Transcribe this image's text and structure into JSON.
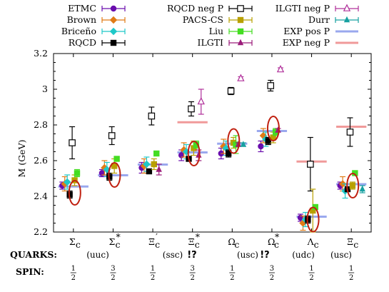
{
  "chart_data": {
    "type": "scatter",
    "ylabel": "M (GeV)",
    "ylim": [
      2.2,
      3.2
    ],
    "yticks": [
      "2.2",
      "2.4",
      "2.6",
      "2.8",
      "3",
      "3.2"
    ],
    "categories": [
      "Σc",
      "Σc*",
      "Ξc′",
      "Ξc*",
      "Ωc",
      "Ωc*",
      "Λc",
      "Ξc"
    ],
    "category_labels": [
      {
        "base": "Σ",
        "sub": "c",
        "sup": ""
      },
      {
        "base": "Σ",
        "sub": "c",
        "sup": "*"
      },
      {
        "base": "Ξ",
        "sub": "c",
        "sup": "′"
      },
      {
        "base": "Ξ",
        "sub": "c",
        "sup": "*"
      },
      {
        "base": "Ω",
        "sub": "c",
        "sup": ""
      },
      {
        "base": "Ω",
        "sub": "c",
        "sup": "*"
      },
      {
        "base": "Λ",
        "sub": "c",
        "sup": ""
      },
      {
        "base": "Ξ",
        "sub": "c",
        "sup": ""
      }
    ],
    "series": [
      {
        "name": "ETMC",
        "color": "#6a0dad",
        "marker": "circle",
        "values": [
          2.46,
          2.53,
          2.56,
          2.63,
          2.64,
          2.68,
          2.28,
          2.46
        ],
        "errors": [
          0.02,
          0.02,
          0.03,
          0.03,
          0.03,
          0.03,
          0.02,
          0.02
        ]
      },
      {
        "name": "Brown",
        "color": "#e07b16",
        "marker": "diamond",
        "values": [
          2.47,
          2.56,
          2.57,
          2.66,
          2.68,
          2.74,
          2.25,
          2.47
        ],
        "errors": [
          0.04,
          0.04,
          0.04,
          0.04,
          0.04,
          0.04,
          0.04,
          0.04
        ]
      },
      {
        "name": "Briceño",
        "color": "#1ec8c8",
        "marker": "diamond",
        "values": [
          2.48,
          2.55,
          2.58,
          2.65,
          2.67,
          2.72,
          2.27,
          2.43
        ],
        "errors": [
          0.04,
          0.04,
          0.04,
          0.04,
          0.04,
          0.04,
          0.04,
          0.04
        ]
      },
      {
        "name": "RQCD",
        "color": "#000000",
        "marker": "square",
        "values": [
          2.41,
          2.51,
          2.54,
          2.61,
          2.64,
          2.71,
          2.27,
          2.44
        ],
        "errors": [
          0.02,
          0.02,
          0.01,
          0.01,
          0.02,
          0.02,
          0.02,
          0.01
        ]
      },
      {
        "name": "RQCD neg P",
        "color": "#000000",
        "marker": "open-square",
        "values": [
          2.7,
          2.74,
          2.85,
          2.89,
          2.99,
          3.02,
          2.58,
          2.76
        ],
        "errors": [
          0.09,
          0.05,
          0.05,
          0.04,
          0.02,
          0.03,
          0.15,
          0.08
        ]
      },
      {
        "name": "PACS-CS",
        "color": "#b8a000",
        "marker": "square",
        "values": [
          2.49,
          2.57,
          2.58,
          2.67,
          2.7,
          2.73,
          2.32,
          2.46
        ],
        "errors": [
          0.03,
          0.04,
          0.03,
          0.04,
          0.03,
          0.03,
          0.12,
          0.02
        ]
      },
      {
        "name": "Liu",
        "color": "#44dd22",
        "marker": "square",
        "values": [
          2.53,
          2.61,
          2.64,
          2.69,
          2.69,
          2.76,
          2.34,
          2.53
        ],
        "errors": [
          0.02,
          0.01,
          0.01,
          0.02,
          0.05,
          0.02,
          0.01,
          0.01
        ]
      },
      {
        "name": "ILGTI",
        "color": "#9b1c7a",
        "marker": "triangle",
        "values": [
          null,
          null,
          2.55,
          2.63,
          2.69,
          2.77,
          null,
          null
        ],
        "errors": [
          0,
          0,
          0.03,
          0.03,
          0.01,
          0.01,
          0,
          0
        ]
      },
      {
        "name": "ILGTI neg P",
        "color": "#b0309a",
        "marker": "open-triangle",
        "values": [
          null,
          null,
          null,
          2.93,
          3.06,
          3.11,
          null,
          null
        ],
        "errors": [
          0,
          0,
          0,
          0.07,
          0.01,
          0.01,
          0,
          0
        ]
      },
      {
        "name": "Durr",
        "color": "#16a0a0",
        "marker": "triangle",
        "values": [
          null,
          null,
          null,
          null,
          2.69,
          null,
          null,
          2.44
        ],
        "errors": [
          0,
          0,
          0,
          0,
          0.01,
          0,
          0,
          0.02
        ]
      },
      {
        "name": "EXP pos P",
        "color": "#9aa8ee",
        "marker": "line",
        "values": [
          2.455,
          2.518,
          2.578,
          2.646,
          2.695,
          2.766,
          2.286,
          2.468
        ]
      },
      {
        "name": "EXP neg P",
        "color": "#f09a9a",
        "marker": "line",
        "values": [
          null,
          null,
          null,
          2.815,
          null,
          null,
          2.595,
          2.79
        ]
      }
    ]
  },
  "bottom": {
    "quarks_label": "QUARKS:",
    "spin_label": "SPIN:",
    "quark_groups": [
      "(uuc)",
      "(ssc)",
      "(usc)",
      "(udc)",
      "(usc)"
    ],
    "marks": [
      "!?",
      "!?"
    ],
    "spins": [
      {
        "num": "1",
        "den": "2"
      },
      {
        "num": "3",
        "den": "2"
      },
      {
        "num": "1",
        "den": "2"
      },
      {
        "num": "3",
        "den": "2"
      },
      {
        "num": "1",
        "den": "2"
      },
      {
        "num": "3",
        "den": "2"
      },
      {
        "num": "1",
        "den": "2"
      },
      {
        "num": "1",
        "den": "2"
      }
    ]
  }
}
